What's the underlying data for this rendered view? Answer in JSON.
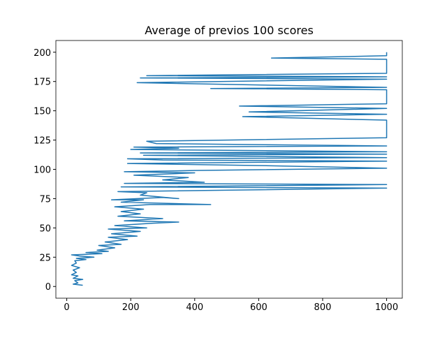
{
  "chart_data": {
    "type": "line",
    "title": "Average of previos 100 scores",
    "series": [
      {
        "color": "#1f77b4",
        "x": [
          50,
          20,
          35,
          25,
          50,
          20,
          35,
          15,
          30,
          20,
          40,
          15,
          30,
          25,
          60,
          30,
          85,
          40,
          15,
          110,
          60,
          130,
          95,
          150,
          100,
          170,
          120,
          190,
          130,
          220,
          140,
          230,
          130,
          250,
          150,
          270,
          350,
          180,
          300,
          160,
          230,
          170,
          240,
          150,
          260,
          450,
          170,
          240,
          140,
          300,
          350,
          230,
          250,
          160,
          1000,
          170,
          1000,
          180,
          430,
          300,
          380,
          210,
          400,
          180,
          400,
          1000,
          650,
          190,
          1000,
          300,
          190,
          1000,
          240,
          1000,
          230,
          1000,
          200,
          350,
          210,
          1000,
          280,
          250,
          1000,
          1000,
          550,
          1000,
          570,
          1000,
          540,
          1000,
          1000,
          450,
          1000,
          220,
          1000,
          230,
          1000,
          250,
          1000,
          1000,
          640,
          1000,
          1000
        ],
        "y": [
          1,
          2,
          3,
          5,
          6,
          7,
          9,
          10,
          12,
          14,
          16,
          18,
          20,
          22,
          23,
          24,
          25,
          26,
          27,
          28,
          29,
          30,
          31,
          33,
          35,
          36,
          38,
          40,
          42,
          43,
          45,
          47,
          49,
          50,
          52,
          54,
          55,
          56,
          58,
          60,
          62,
          64,
          66,
          68,
          70,
          70,
          72,
          74,
          74,
          76,
          75,
          78,
          80,
          81,
          84,
          85,
          87,
          88,
          89,
          91,
          93,
          95,
          97,
          98,
          99,
          101,
          103,
          105,
          107,
          108,
          109,
          110,
          112,
          113,
          114,
          115,
          117,
          118,
          119,
          120,
          122,
          124,
          127,
          142,
          145,
          147,
          149,
          152,
          154,
          156,
          168,
          169,
          170,
          174,
          177,
          178,
          179,
          180,
          182,
          194,
          195,
          197,
          200
        ]
      }
    ],
    "xlim": [
      -34,
      1049
    ],
    "ylim": [
      -10,
      210
    ],
    "xticks": [
      0,
      200,
      400,
      600,
      800,
      1000
    ],
    "yticks": [
      0,
      25,
      50,
      75,
      100,
      125,
      150,
      175,
      200
    ]
  }
}
